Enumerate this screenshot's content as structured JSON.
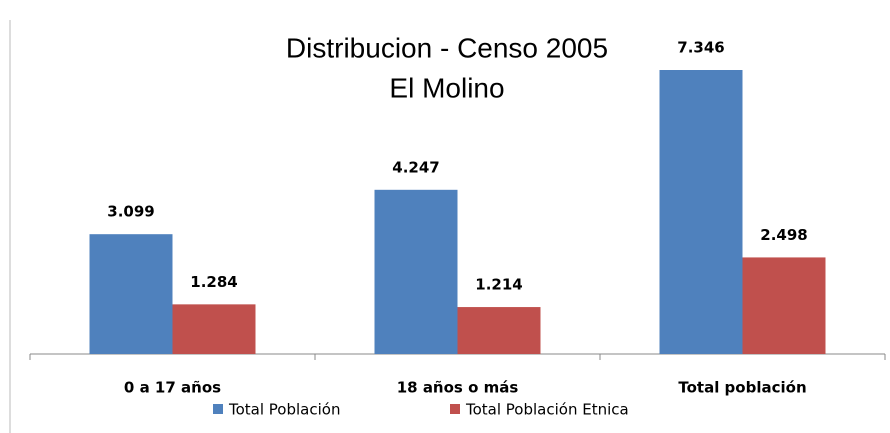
{
  "chart_data": {
    "type": "bar",
    "title": "Distribucion - Censo 2005",
    "subtitle": "El Molino",
    "categories": [
      "0 a 17 años",
      "18 años o más",
      "Total población"
    ],
    "series": [
      {
        "name": "Total Población",
        "color": "#4f81bd",
        "values": [
          3099,
          4247,
          7346
        ],
        "value_labels": [
          "3.099",
          "4.247",
          "7.346"
        ]
      },
      {
        "name": "Total Población Etnica",
        "color": "#c0504d",
        "values": [
          1284,
          1214,
          2498
        ],
        "value_labels": [
          "1.284",
          "1.214",
          "2.498"
        ]
      }
    ]
  }
}
